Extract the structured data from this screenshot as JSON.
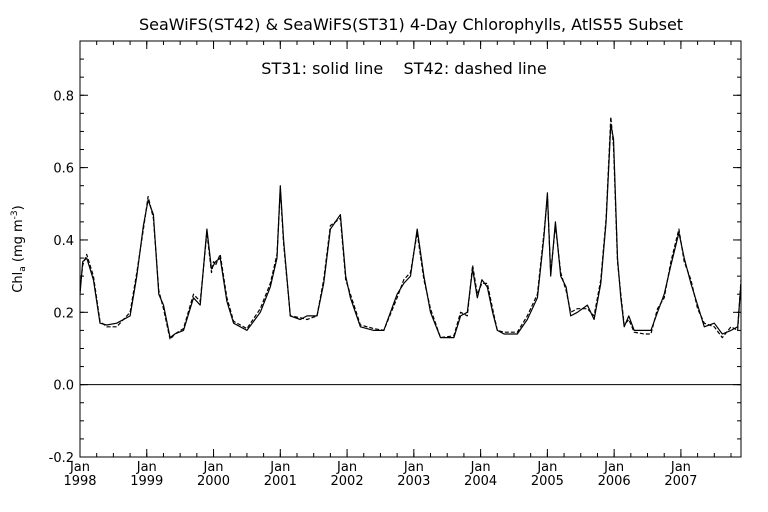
{
  "chart_data": {
    "type": "line",
    "title": "SeaWiFS(ST42) & SeaWiFS(ST31) 4-Day Chlorophylls, AtlS55 Subset",
    "annotation": "ST31: solid line    ST42: dashed line",
    "ylabel_main": "Chl",
    "ylabel_sub": "a",
    "ylabel_unit": " (mg m",
    "ylabel_exp": "-3",
    "ylabel_close": ")",
    "ylim": [
      -0.2,
      0.95
    ],
    "xlim": [
      1998.0,
      2007.9
    ],
    "yticks": [
      {
        "v": -0.2,
        "label": "-0.2"
      },
      {
        "v": 0.0,
        "label": "0.0"
      },
      {
        "v": 0.2,
        "label": "0.2"
      },
      {
        "v": 0.4,
        "label": "0.4"
      },
      {
        "v": 0.6,
        "label": "0.6"
      },
      {
        "v": 0.8,
        "label": "0.8"
      }
    ],
    "xticks": [
      {
        "v": 1998,
        "month": "Jan",
        "year": "1998"
      },
      {
        "v": 1999,
        "month": "Jan",
        "year": "1999"
      },
      {
        "v": 2000,
        "month": "Jan",
        "year": "2000"
      },
      {
        "v": 2001,
        "month": "Jan",
        "year": "2001"
      },
      {
        "v": 2002,
        "month": "Jan",
        "year": "2002"
      },
      {
        "v": 2003,
        "month": "Jan",
        "year": "2003"
      },
      {
        "v": 2004,
        "month": "Jan",
        "year": "2004"
      },
      {
        "v": 2005,
        "month": "Jan",
        "year": "2005"
      },
      {
        "v": 2006,
        "month": "Jan",
        "year": "2006"
      },
      {
        "v": 2007,
        "month": "Jan",
        "year": "2007"
      }
    ],
    "zero_line": 0.0,
    "series": [
      {
        "name": "ST31",
        "style": "solid",
        "x": [
          1998.0,
          1998.04,
          1998.1,
          1998.2,
          1998.3,
          1998.4,
          1998.55,
          1998.75,
          1998.85,
          1998.95,
          1999.02,
          1999.1,
          1999.18,
          1999.25,
          1999.35,
          1999.42,
          1999.55,
          1999.7,
          1999.8,
          1999.9,
          1999.97,
          2000.0,
          2000.03,
          2000.1,
          2000.2,
          2000.3,
          2000.5,
          2000.7,
          2000.85,
          2000.95,
          2001.0,
          2001.05,
          2001.15,
          2001.3,
          2001.4,
          2001.55,
          2001.65,
          2001.75,
          2001.9,
          2001.98,
          2002.05,
          2002.2,
          2002.4,
          2002.55,
          2002.75,
          2002.85,
          2002.95,
          2003.05,
          2003.15,
          2003.25,
          2003.4,
          2003.6,
          2003.7,
          2003.8,
          2003.88,
          2003.95,
          2004.02,
          2004.1,
          2004.18,
          2004.25,
          2004.35,
          2004.55,
          2004.7,
          2004.85,
          2004.95,
          2005.0,
          2005.05,
          2005.12,
          2005.2,
          2005.28,
          2005.35,
          2005.45,
          2005.6,
          2005.7,
          2005.8,
          2005.88,
          2005.95,
          2005.99,
          2006.05,
          2006.1,
          2006.15,
          2006.22,
          2006.3,
          2006.45,
          2006.55,
          2006.65,
          2006.75,
          2006.85,
          2006.97,
          2007.05,
          2007.15,
          2007.25,
          2007.35,
          2007.5,
          2007.62,
          2007.75,
          2007.85,
          2007.9
        ],
        "y": [
          0.25,
          0.34,
          0.35,
          0.29,
          0.17,
          0.165,
          0.17,
          0.19,
          0.3,
          0.44,
          0.51,
          0.47,
          0.25,
          0.22,
          0.13,
          0.14,
          0.15,
          0.24,
          0.22,
          0.43,
          0.32,
          0.33,
          0.34,
          0.35,
          0.23,
          0.17,
          0.15,
          0.2,
          0.27,
          0.35,
          0.55,
          0.4,
          0.19,
          0.18,
          0.19,
          0.19,
          0.28,
          0.43,
          0.47,
          0.3,
          0.24,
          0.16,
          0.15,
          0.15,
          0.25,
          0.28,
          0.3,
          0.43,
          0.3,
          0.2,
          0.13,
          0.13,
          0.19,
          0.2,
          0.32,
          0.24,
          0.29,
          0.27,
          0.2,
          0.15,
          0.14,
          0.14,
          0.18,
          0.24,
          0.41,
          0.53,
          0.3,
          0.45,
          0.3,
          0.27,
          0.19,
          0.2,
          0.22,
          0.18,
          0.28,
          0.45,
          0.72,
          0.68,
          0.35,
          0.24,
          0.16,
          0.19,
          0.15,
          0.15,
          0.15,
          0.2,
          0.25,
          0.33,
          0.42,
          0.35,
          0.28,
          0.22,
          0.16,
          0.17,
          0.14,
          0.15,
          0.16,
          0.28
        ]
      },
      {
        "name": "ST42",
        "style": "dashed",
        "x": [
          1998.0,
          1998.04,
          1998.1,
          1998.2,
          1998.3,
          1998.4,
          1998.55,
          1998.75,
          1998.85,
          1998.95,
          1999.02,
          1999.1,
          1999.18,
          1999.25,
          1999.35,
          1999.42,
          1999.55,
          1999.7,
          1999.8,
          1999.9,
          1999.97,
          2000.0,
          2000.03,
          2000.1,
          2000.2,
          2000.3,
          2000.5,
          2000.7,
          2000.85,
          2000.95,
          2001.0,
          2001.05,
          2001.15,
          2001.3,
          2001.4,
          2001.55,
          2001.65,
          2001.75,
          2001.9,
          2001.98,
          2002.05,
          2002.2,
          2002.4,
          2002.55,
          2002.75,
          2002.85,
          2002.95,
          2003.05,
          2003.15,
          2003.25,
          2003.4,
          2003.6,
          2003.7,
          2003.8,
          2003.88,
          2003.95,
          2004.02,
          2004.1,
          2004.18,
          2004.25,
          2004.35,
          2004.55,
          2004.7,
          2004.85,
          2004.95,
          2005.0,
          2005.05,
          2005.12,
          2005.2,
          2005.28,
          2005.35,
          2005.45,
          2005.6,
          2005.7,
          2005.8,
          2005.88,
          2005.95,
          2005.99,
          2006.05,
          2006.1,
          2006.15,
          2006.22,
          2006.3,
          2006.45,
          2006.55,
          2006.65,
          2006.75,
          2006.85,
          2006.97,
          2007.05,
          2007.15,
          2007.25,
          2007.35,
          2007.5,
          2007.62,
          2007.75,
          2007.85,
          2007.9
        ],
        "y": [
          0.26,
          0.33,
          0.36,
          0.3,
          0.175,
          0.16,
          0.16,
          0.2,
          0.31,
          0.43,
          0.52,
          0.46,
          0.26,
          0.21,
          0.125,
          0.14,
          0.155,
          0.25,
          0.23,
          0.42,
          0.31,
          0.34,
          0.33,
          0.36,
          0.24,
          0.175,
          0.155,
          0.21,
          0.28,
          0.36,
          0.54,
          0.39,
          0.19,
          0.185,
          0.18,
          0.19,
          0.29,
          0.44,
          0.46,
          0.29,
          0.25,
          0.165,
          0.155,
          0.15,
          0.24,
          0.29,
          0.31,
          0.42,
          0.29,
          0.21,
          0.13,
          0.135,
          0.2,
          0.19,
          0.33,
          0.25,
          0.28,
          0.28,
          0.21,
          0.15,
          0.145,
          0.145,
          0.19,
          0.25,
          0.42,
          0.52,
          0.31,
          0.44,
          0.31,
          0.26,
          0.2,
          0.21,
          0.21,
          0.19,
          0.29,
          0.46,
          0.74,
          0.66,
          0.34,
          0.25,
          0.165,
          0.18,
          0.145,
          0.14,
          0.14,
          0.21,
          0.24,
          0.34,
          0.43,
          0.34,
          0.29,
          0.21,
          0.17,
          0.16,
          0.13,
          0.16,
          0.15,
          0.29
        ]
      }
    ]
  }
}
